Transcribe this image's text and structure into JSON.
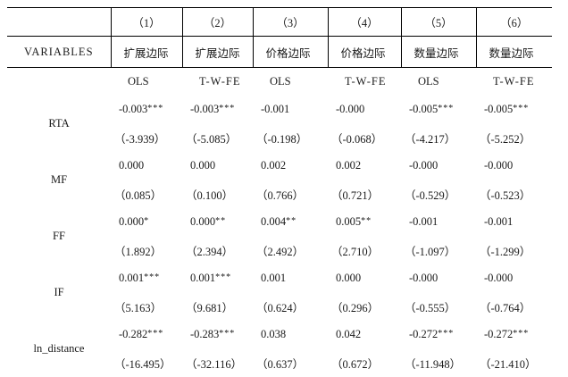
{
  "table": {
    "column_numbers": [
      "（1）",
      "（2）",
      "（3）",
      "（4）",
      "（5）",
      "（6）"
    ],
    "variables_label": "VARIABLES",
    "column_headers": [
      "扩展边际",
      "扩展边际",
      "价格边际",
      "价格边际",
      "数量边际",
      "数量边际"
    ],
    "models": [
      "OLS",
      "T-W-FE",
      "OLS",
      "T-W-FE",
      "OLS",
      "T-W-FE"
    ],
    "rows": [
      {
        "variable": "RTA",
        "coefs": [
          "-0.003",
          "-0.003",
          "-0.001",
          "-0.000",
          "-0.005",
          "-0.005"
        ],
        "stars": [
          "***",
          "***",
          "",
          "",
          "***",
          "***"
        ],
        "tstats": [
          "（-3.939）",
          "（-5.085）",
          "（-0.198）",
          "（-0.068）",
          "（-4.217）",
          "（-5.252）"
        ]
      },
      {
        "variable": "MF",
        "coefs": [
          "0.000",
          "0.000",
          "0.002",
          "0.002",
          "-0.000",
          "-0.000"
        ],
        "stars": [
          "",
          "",
          "",
          "",
          "",
          ""
        ],
        "tstats": [
          "（0.085）",
          "（0.100）",
          "（0.766）",
          "（0.721）",
          "（-0.529）",
          "（-0.523）"
        ]
      },
      {
        "variable": "FF",
        "coefs": [
          "0.000",
          "0.000",
          "0.004",
          "0.005",
          "-0.001",
          "-0.001"
        ],
        "stars": [
          "*",
          "**",
          "**",
          "**",
          "",
          ""
        ],
        "tstats": [
          "（1.892）",
          "（2.394）",
          "（2.492）",
          "（2.710）",
          "（-1.097）",
          "（-1.299）"
        ]
      },
      {
        "variable": "IF",
        "coefs": [
          "0.001",
          "0.001",
          "0.001",
          "0.000",
          "-0.000",
          "-0.000"
        ],
        "stars": [
          "***",
          "***",
          "",
          "",
          "",
          ""
        ],
        "tstats": [
          "（5.163）",
          "（9.681）",
          "（0.624）",
          "（0.296）",
          "（-0.555）",
          "（-0.764）"
        ]
      },
      {
        "variable": "ln_distance",
        "coefs": [
          "-0.282",
          "-0.283",
          "0.038",
          "0.042",
          "-0.272",
          "-0.272"
        ],
        "stars": [
          "***",
          "***",
          "",
          "",
          "***",
          "***"
        ],
        "tstats": [
          "（-16.495）",
          "（-32.116）",
          "（0.637）",
          "（0.672）",
          "（-11.948）",
          "（-21.410）"
        ]
      }
    ]
  }
}
